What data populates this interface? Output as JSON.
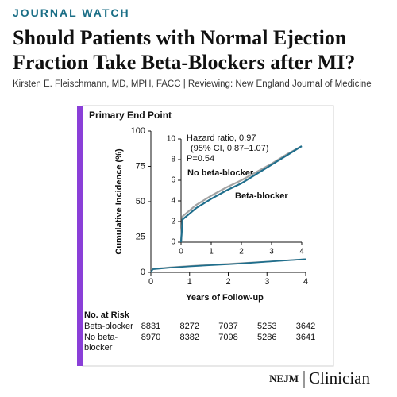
{
  "header": {
    "kicker": "JOURNAL WATCH",
    "title": "Should Patients with Normal Ejection Fraction Take Beta-Blockers after MI?",
    "byline": "Kirsten E. Fleischmann, MD, MPH, FACC | Reviewing: New England Journal of Medicine"
  },
  "chart_data": [
    {
      "type": "line",
      "title": "Primary End Point",
      "x_label": "Years of Follow-up",
      "y_label": "Cumulative Incidence (%)",
      "xlim": [
        0,
        4
      ],
      "ylim": [
        0,
        100
      ],
      "xticks": [
        0,
        1,
        2,
        3,
        4
      ],
      "yticks": [
        0,
        25,
        50,
        75,
        100
      ],
      "x": [
        0,
        0.05,
        0.5,
        1,
        1.5,
        2,
        2.5,
        3,
        3.5,
        4
      ],
      "series": [
        {
          "name": "No beta-blocker",
          "color": "#a3a3a3",
          "values": [
            0,
            2.5,
            3.6,
            4.5,
            5.3,
            6.0,
            6.8,
            7.6,
            8.5,
            9.3
          ]
        },
        {
          "name": "Beta-blocker",
          "color": "#1f6e8c",
          "values": [
            0,
            2.2,
            3.3,
            4.2,
            5.0,
            5.7,
            6.6,
            7.5,
            8.4,
            9.3
          ]
        }
      ]
    },
    {
      "type": "line",
      "xlim": [
        0,
        4
      ],
      "ylim": [
        0,
        10
      ],
      "xticks": [
        0,
        1,
        2,
        3,
        4
      ],
      "yticks": [
        0,
        2,
        4,
        6,
        8,
        10
      ],
      "annotations": [
        "Hazard ratio, 0.97",
        "(95% CI, 0.87–1.07)",
        "P=0.54"
      ],
      "x": [
        0,
        0.05,
        0.5,
        1,
        1.5,
        2,
        2.5,
        3,
        3.5,
        4
      ],
      "series": [
        {
          "name": "No beta-blocker",
          "color": "#a3a3a3",
          "values": [
            0,
            2.5,
            3.6,
            4.5,
            5.3,
            6.0,
            6.8,
            7.6,
            8.5,
            9.3
          ]
        },
        {
          "name": "Beta-blocker",
          "color": "#1f6e8c",
          "values": [
            0,
            2.2,
            3.3,
            4.2,
            5.0,
            5.7,
            6.6,
            7.5,
            8.4,
            9.3
          ]
        }
      ]
    }
  ],
  "risk_table": {
    "title": "No. at Risk",
    "rows": [
      {
        "label": "Beta-blocker",
        "values": [
          8831,
          8272,
          7037,
          5253,
          3642
        ]
      },
      {
        "label": "No beta-blocker",
        "values": [
          8970,
          8382,
          7098,
          5286,
          3641
        ]
      }
    ]
  },
  "footer": {
    "brand": "NEJM",
    "product": "Clinician"
  }
}
